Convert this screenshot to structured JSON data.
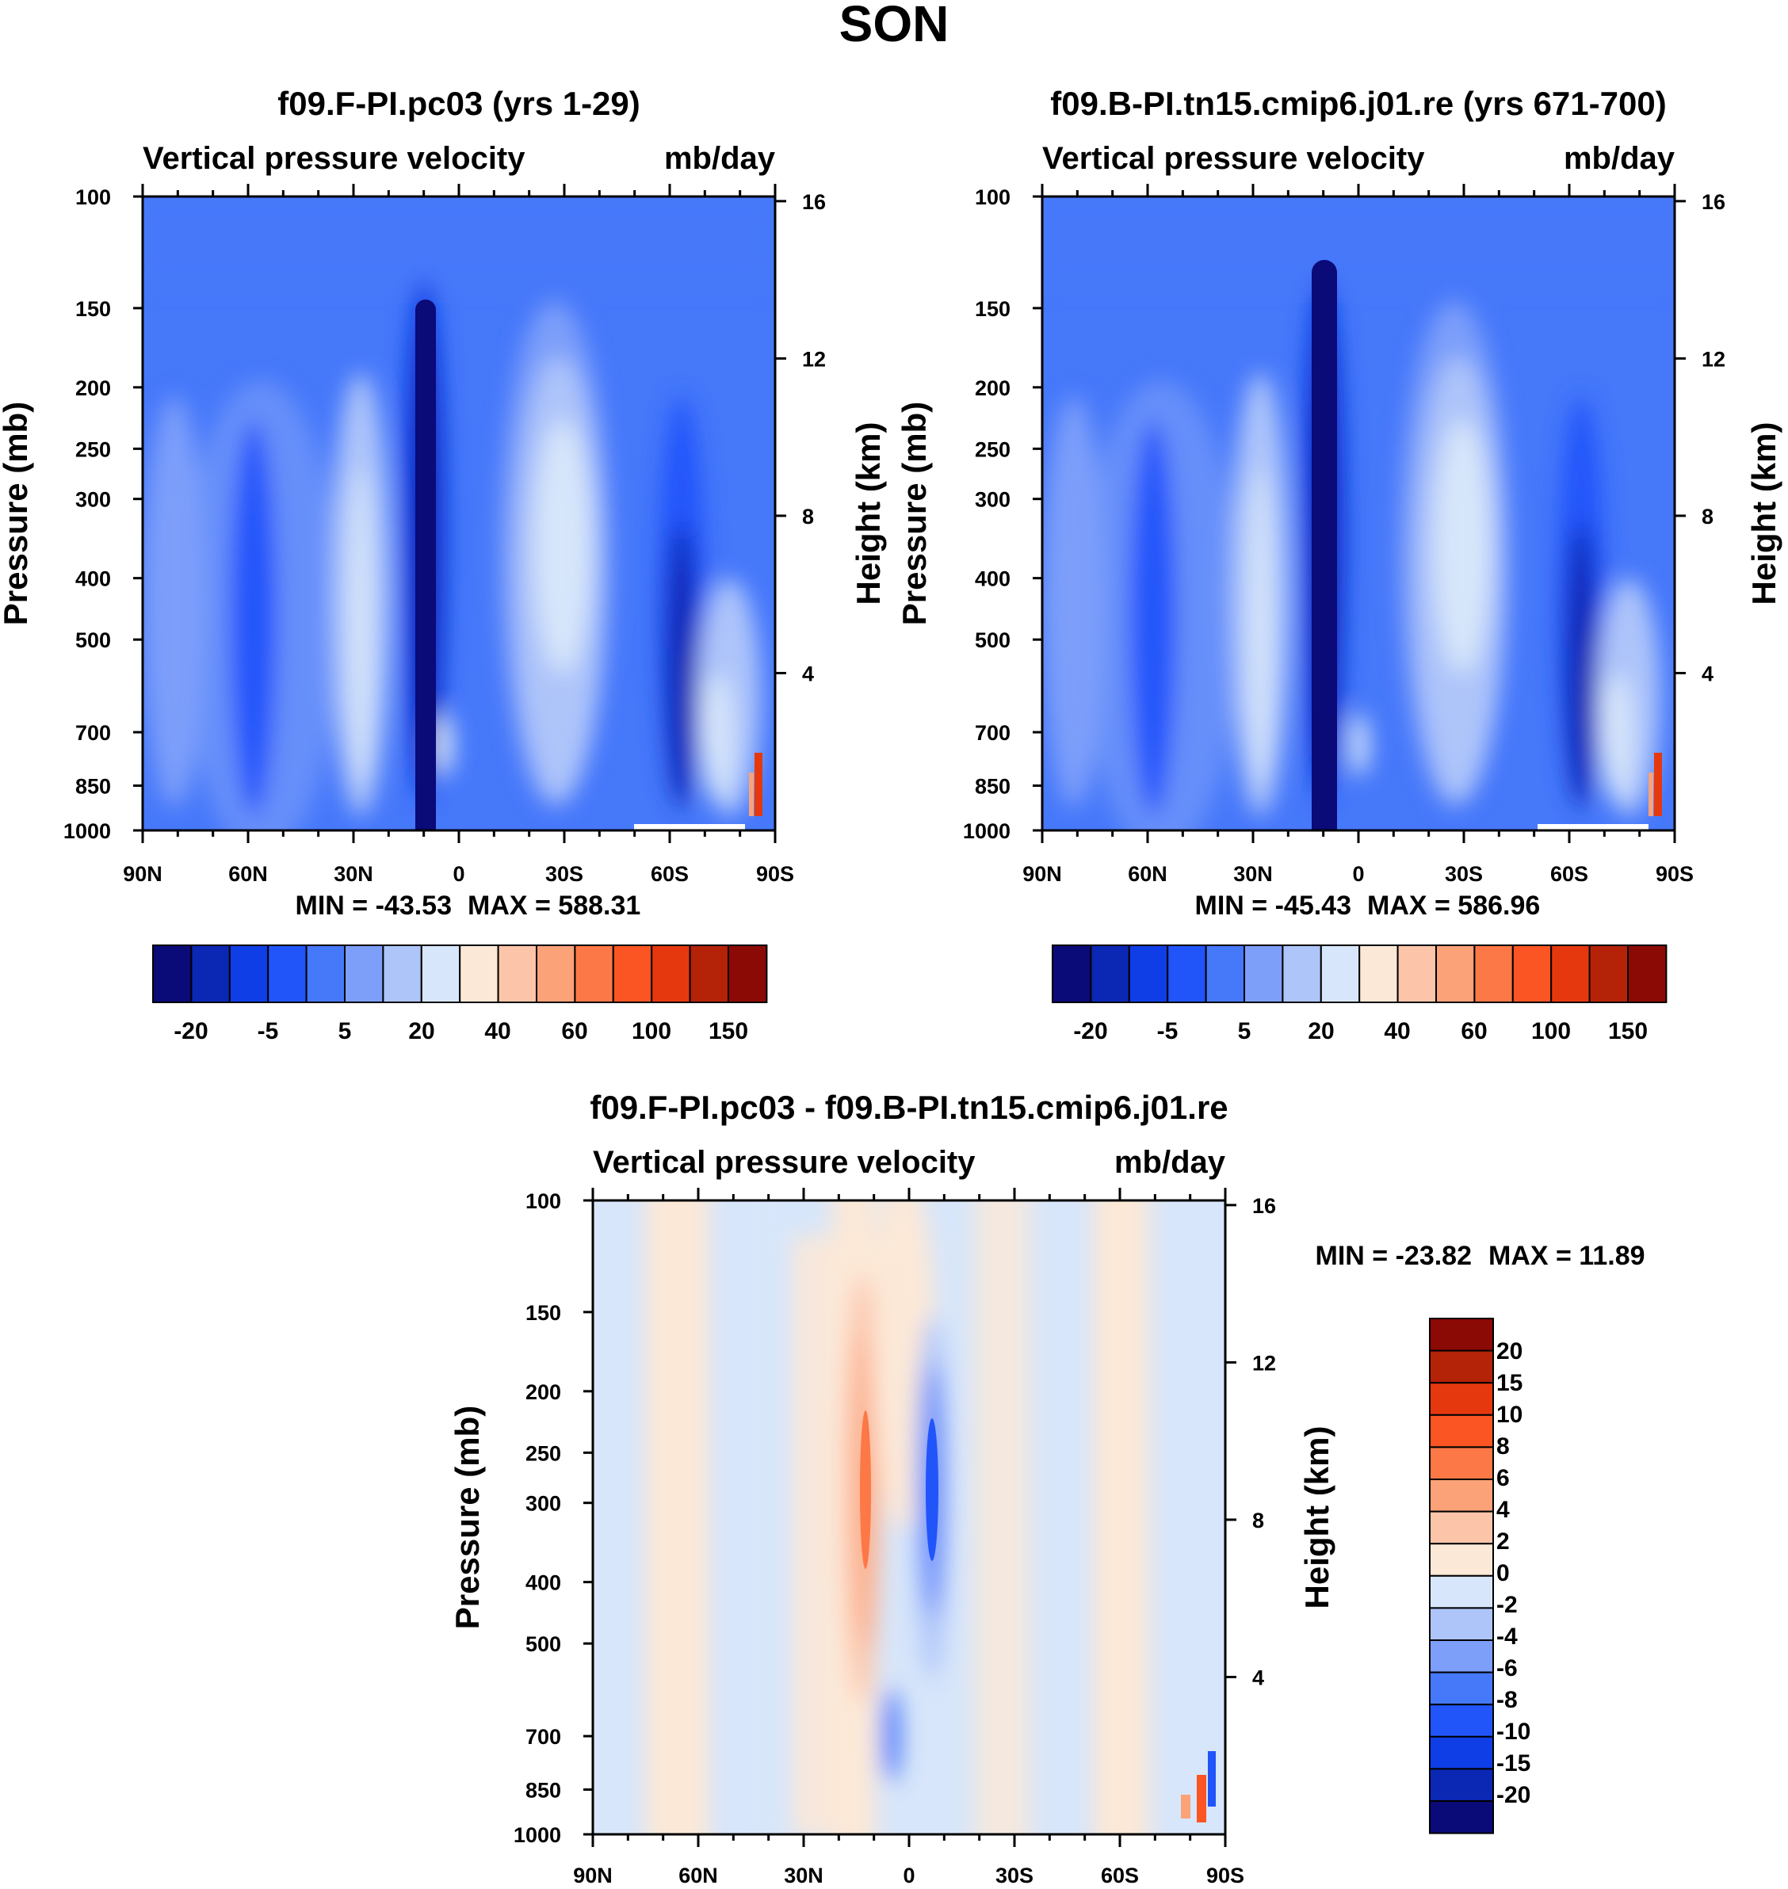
{
  "figure_title": "SON",
  "chart_data": [
    {
      "type": "heatmap",
      "title": "f09.F-PI.pc03 (yrs 1-29)",
      "left_subtitle": "Vertical pressure velocity",
      "right_subtitle": "mb/day",
      "ylabel": "Pressure (mb)",
      "ylabel_right": "Height (km)",
      "x_ticks": [
        "90N",
        "60N",
        "30N",
        "0",
        "30S",
        "60S",
        "90S"
      ],
      "y_ticks": [
        100,
        150,
        200,
        250,
        300,
        400,
        500,
        700,
        850,
        1000
      ],
      "y_ticks_right": [
        16,
        12,
        8,
        4
      ],
      "ylim": [
        1000,
        100
      ],
      "min_label": "MIN = -43.53",
      "max_label": "MAX = 588.31",
      "colorbar_labels": [
        "-20",
        "-5",
        "5",
        "20",
        "40",
        "60",
        "100",
        "150"
      ],
      "colorbar_levels": [
        -30,
        -20,
        -10,
        -5,
        0,
        5,
        10,
        20,
        30,
        40,
        50,
        60,
        80,
        100,
        150
      ],
      "colors": [
        "#0a0a78",
        "#0a28b4",
        "#0f3ee6",
        "#2155fa",
        "#4678fa",
        "#7d9ffa",
        "#aec5fa",
        "#d7e6fa",
        "#fce8d7",
        "#fcc5aa",
        "#fca278",
        "#fc7846",
        "#fa5523",
        "#e6380f",
        "#b42308",
        "#8c0a05"
      ]
    },
    {
      "type": "heatmap",
      "title": "f09.B-PI.tn15.cmip6.j01.re (yrs 671-700)",
      "left_subtitle": "Vertical pressure velocity",
      "right_subtitle": "mb/day",
      "ylabel": "Pressure (mb)",
      "ylabel_right": "Height (km)",
      "x_ticks": [
        "90N",
        "60N",
        "30N",
        "0",
        "30S",
        "60S",
        "90S"
      ],
      "y_ticks": [
        100,
        150,
        200,
        250,
        300,
        400,
        500,
        700,
        850,
        1000
      ],
      "y_ticks_right": [
        16,
        12,
        8,
        4
      ],
      "ylim": [
        1000,
        100
      ],
      "min_label": "MIN = -45.43",
      "max_label": "MAX = 586.96",
      "colorbar_labels": [
        "-20",
        "-5",
        "5",
        "20",
        "40",
        "60",
        "100",
        "150"
      ],
      "colorbar_levels": [
        -30,
        -20,
        -10,
        -5,
        0,
        5,
        10,
        20,
        30,
        40,
        50,
        60,
        80,
        100,
        150
      ],
      "colors": [
        "#0a0a78",
        "#0a28b4",
        "#0f3ee6",
        "#2155fa",
        "#4678fa",
        "#7d9ffa",
        "#aec5fa",
        "#d7e6fa",
        "#fce8d7",
        "#fcc5aa",
        "#fca278",
        "#fc7846",
        "#fa5523",
        "#e6380f",
        "#b42308",
        "#8c0a05"
      ]
    },
    {
      "type": "heatmap",
      "title": "f09.F-PI.pc03 - f09.B-PI.tn15.cmip6.j01.re",
      "left_subtitle": "Vertical pressure velocity",
      "right_subtitle": "mb/day",
      "ylabel": "Pressure (mb)",
      "ylabel_right": "Height (km)",
      "x_ticks": [
        "90N",
        "60N",
        "30N",
        "0",
        "30S",
        "60S",
        "90S"
      ],
      "y_ticks": [
        100,
        150,
        200,
        250,
        300,
        400,
        500,
        700,
        850,
        1000
      ],
      "y_ticks_right": [
        16,
        12,
        8,
        4
      ],
      "ylim": [
        1000,
        100
      ],
      "min_label": "MIN = -23.82",
      "max_label": "MAX =  11.89",
      "colorbar_labels": [
        "20",
        "15",
        "10",
        "8",
        "6",
        "4",
        "2",
        "0",
        "-2",
        "-4",
        "-6",
        "-8",
        "-10",
        "-15",
        "-20"
      ],
      "colors": [
        "#8c0a05",
        "#b42308",
        "#e6380f",
        "#fa5523",
        "#fc7846",
        "#fca278",
        "#fcc5aa",
        "#fce8d7",
        "#d7e6fa",
        "#aec5fa",
        "#7d9ffa",
        "#4678fa",
        "#2155fa",
        "#0f3ee6",
        "#0a28b4",
        "#0a0a78"
      ]
    }
  ]
}
